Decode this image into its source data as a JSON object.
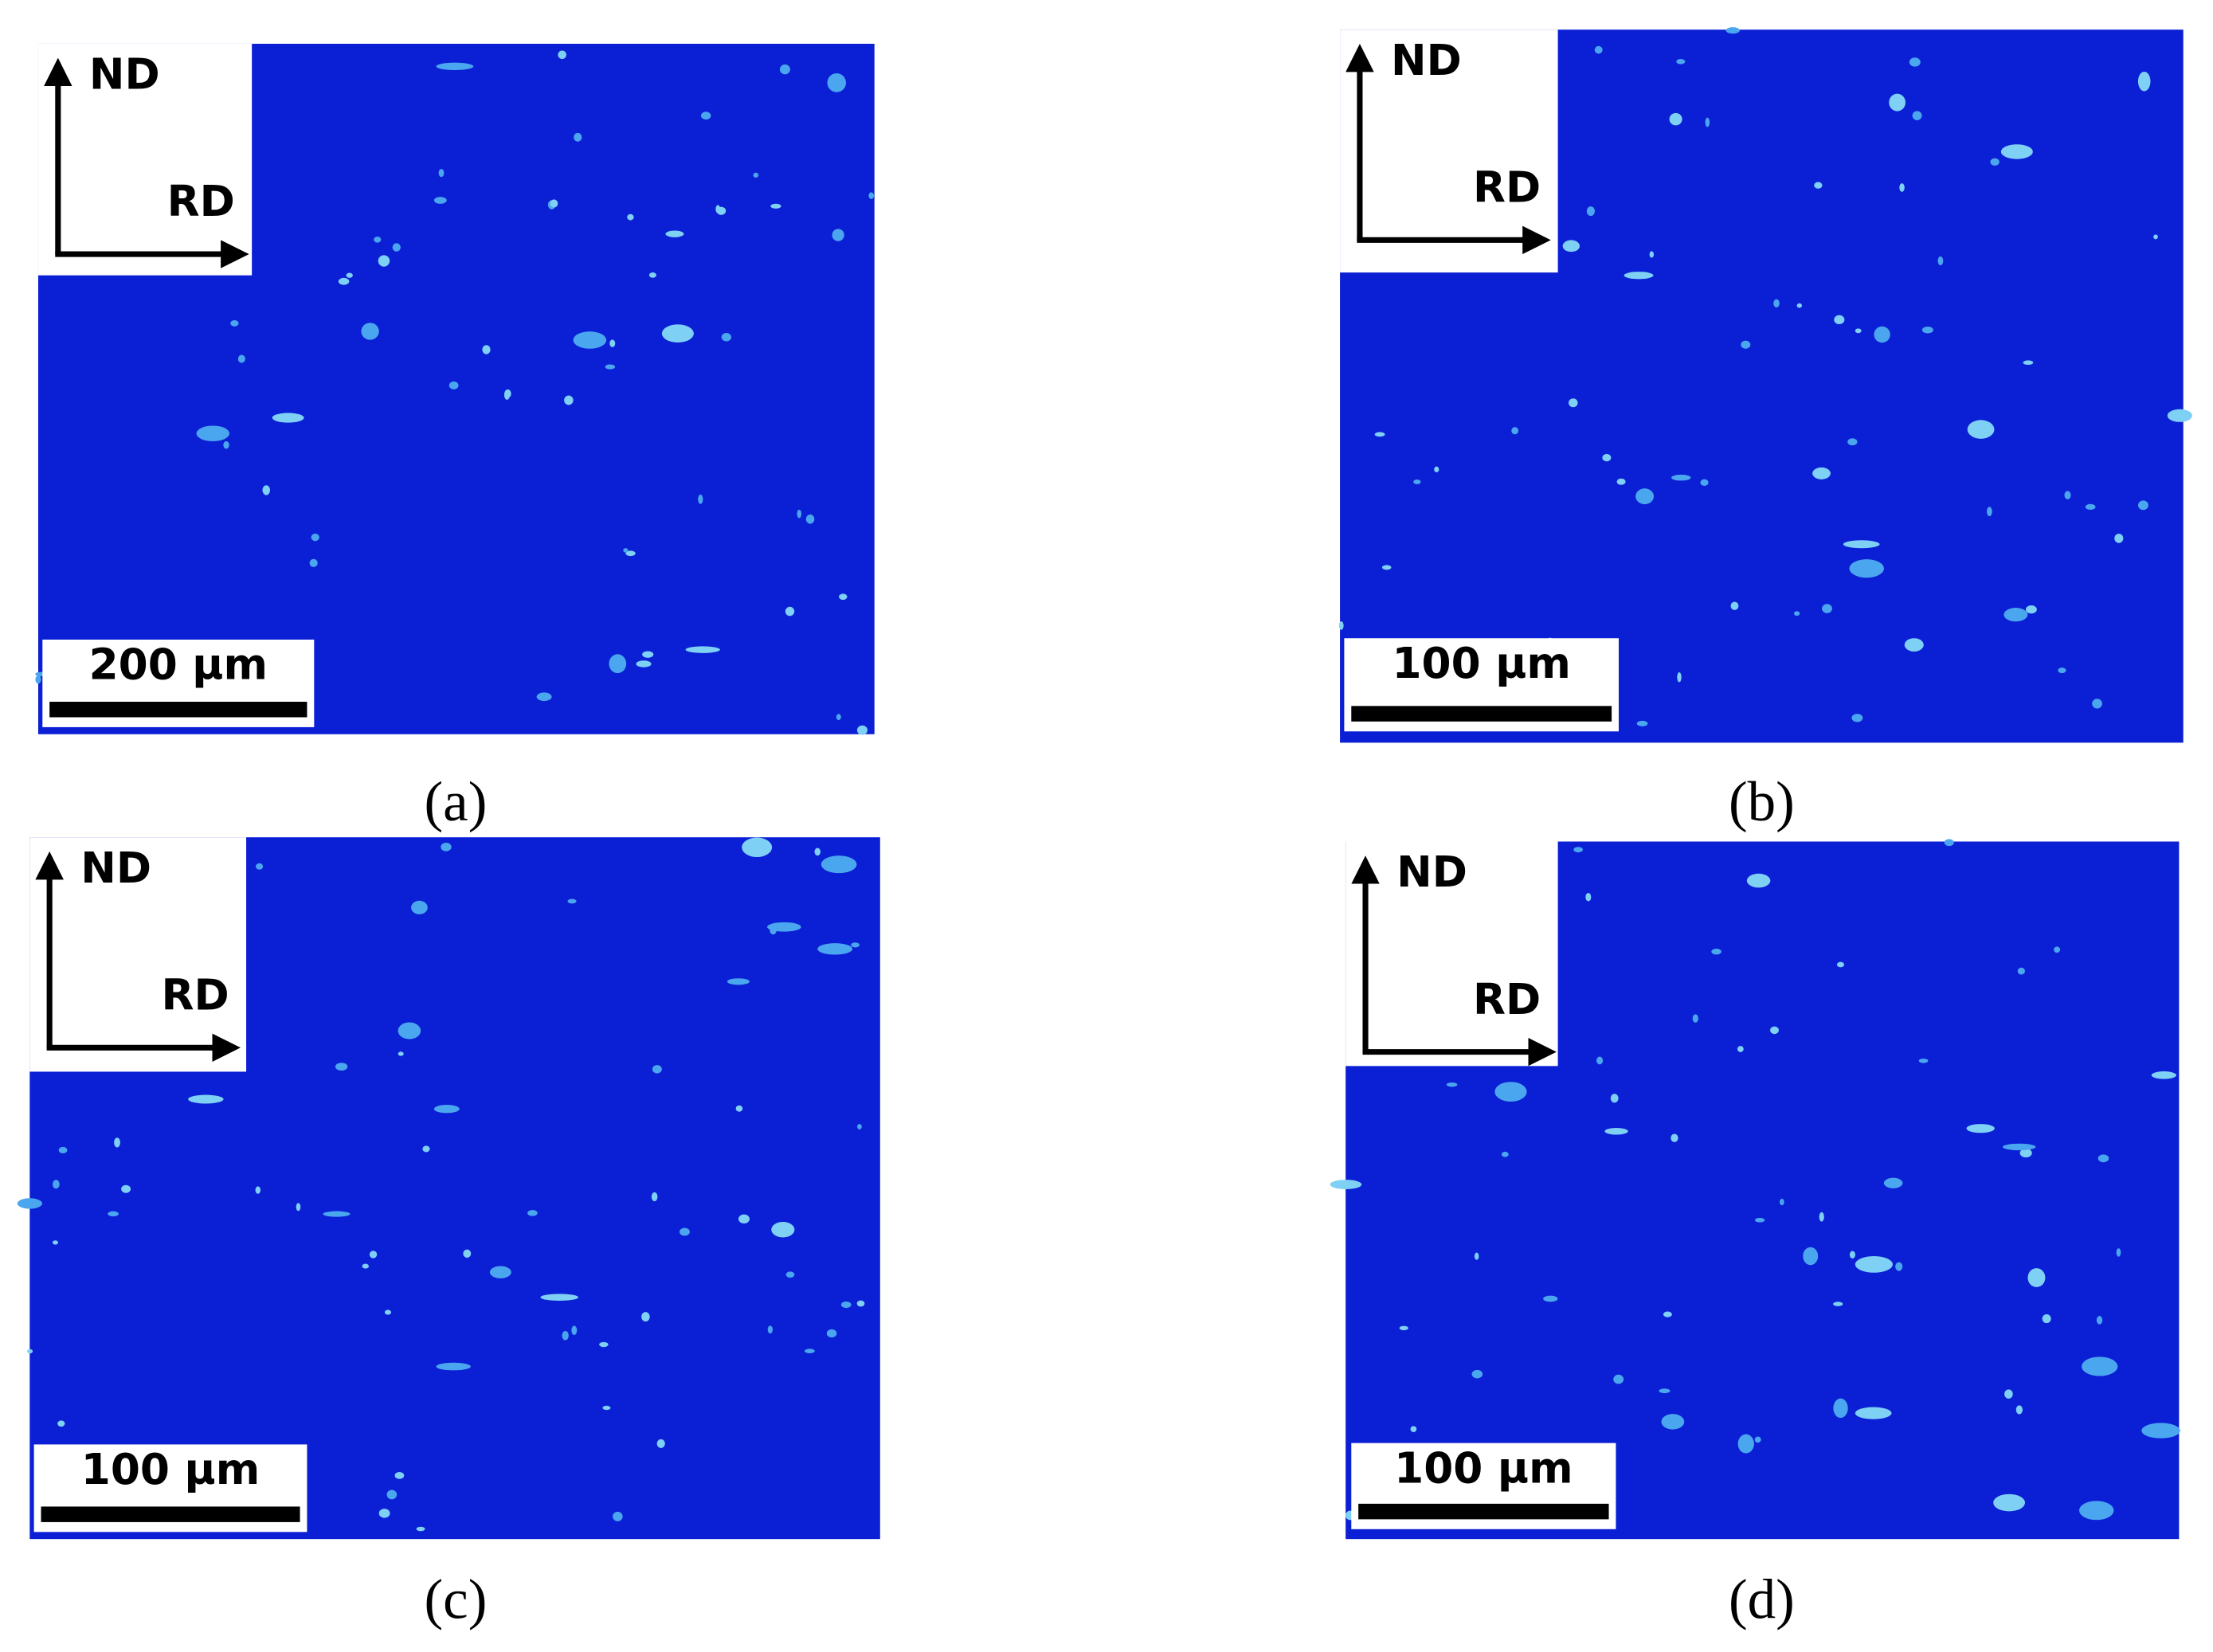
{
  "panels": [
    {
      "caption": "(a)",
      "scale_bar": "200 µm",
      "axes": {
        "vertical": "ND",
        "horizontal": "RD"
      }
    },
    {
      "caption": "(b)",
      "scale_bar": "100 µm",
      "axes": {
        "vertical": "ND",
        "horizontal": "RD"
      }
    },
    {
      "caption": "(c)",
      "scale_bar": "100 µm",
      "axes": {
        "vertical": "ND",
        "horizontal": "RD"
      }
    },
    {
      "caption": "(d)",
      "scale_bar": "100 µm",
      "axes": {
        "vertical": "ND",
        "horizontal": "RD"
      }
    }
  ]
}
